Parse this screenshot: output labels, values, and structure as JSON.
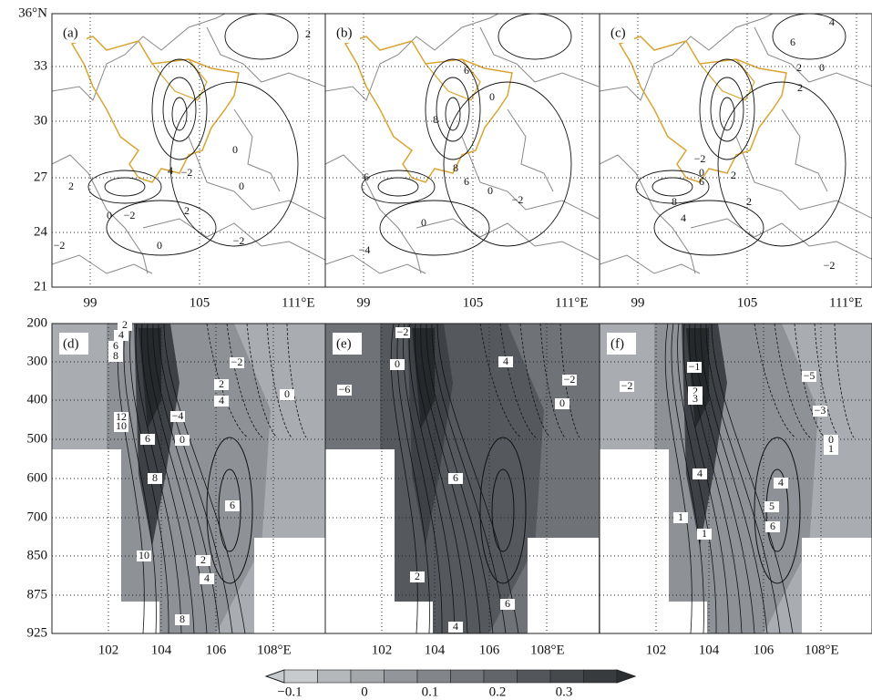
{
  "panels": [
    {
      "label": "(a)"
    },
    {
      "label": "(b)"
    },
    {
      "label": "(c)"
    },
    {
      "label": "(d)"
    },
    {
      "label": "(e)"
    },
    {
      "label": "(f)"
    }
  ],
  "map_axes": {
    "yticks": [
      "36°N",
      "33",
      "30",
      "27",
      "24",
      "21"
    ],
    "xticks": [
      "99",
      "105",
      "111°E"
    ]
  },
  "section_axes": {
    "yticks": [
      "200",
      "300",
      "400",
      "500",
      "600",
      "700",
      "850",
      "875",
      "925"
    ],
    "xticks": [
      "102",
      "104",
      "106",
      "108°E"
    ]
  },
  "colorbar": {
    "labels": [
      "−0.1",
      "0",
      "0.1",
      "0.2",
      "0.3"
    ]
  },
  "contour_labels": [
    [
      "−2",
      "2",
      "0",
      "−2",
      "4",
      "−2",
      "2",
      "0",
      "0",
      "0",
      "−2",
      "2"
    ],
    [
      "6",
      "8",
      "6",
      "6",
      "8",
      "0",
      "0",
      "−2",
      "−4",
      "0"
    ],
    [
      "4",
      "6",
      "0",
      "2",
      "2",
      "−2",
      "0",
      "6",
      "8",
      "2",
      "4",
      "2",
      "−2"
    ],
    [
      "2",
      "4",
      "6",
      "8",
      "12",
      "10",
      "6",
      "0",
      "−4",
      "2",
      "4",
      "−2",
      "0",
      "8",
      "6",
      "10",
      "2",
      "4",
      "8"
    ],
    [
      "−2",
      "0",
      "−6",
      "4",
      "−2",
      "0",
      "6",
      "2",
      "6",
      "4"
    ],
    [
      "−1",
      "−2",
      "2",
      "3",
      "−5",
      "−3",
      "0",
      "1",
      "4",
      "4",
      "5",
      "6",
      "1",
      "1"
    ]
  ]
}
